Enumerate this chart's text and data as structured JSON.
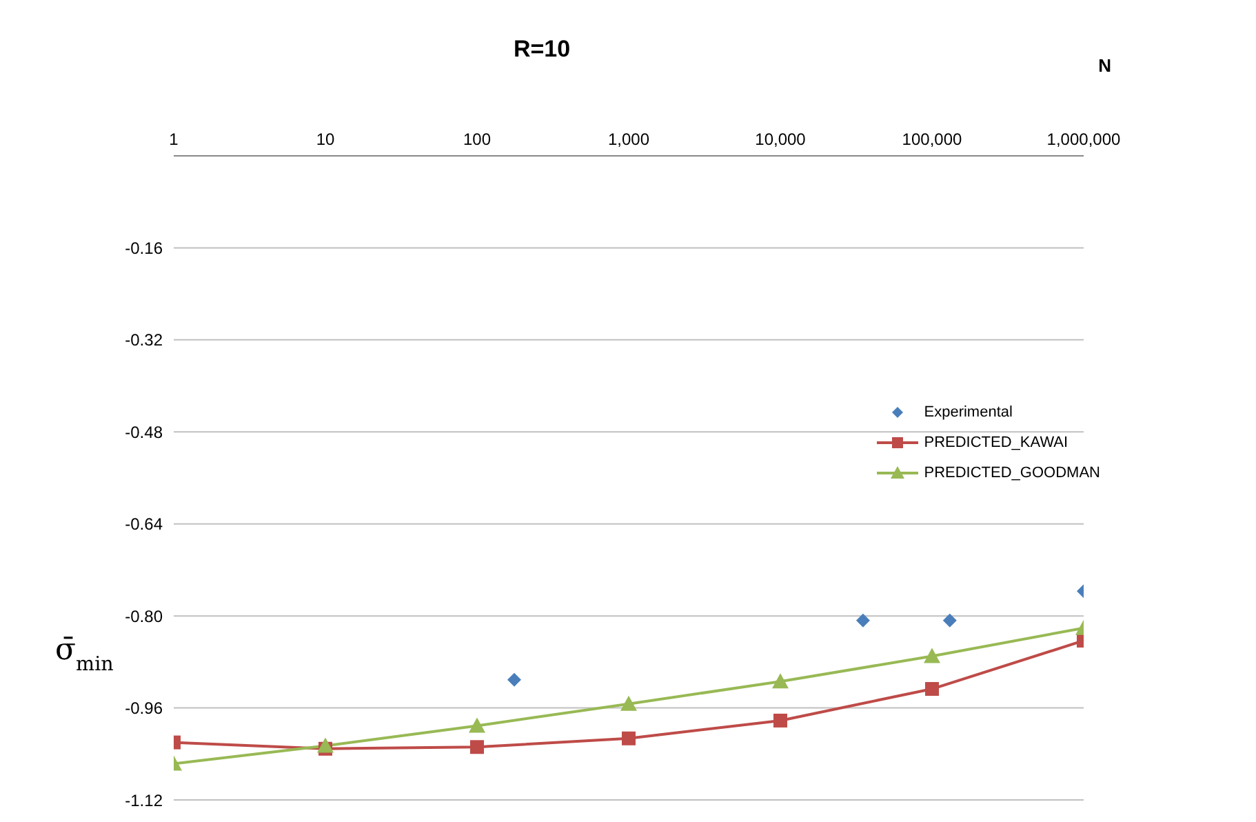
{
  "chart_data": {
    "type": "line",
    "title": "R=10",
    "xlabel": "N",
    "ylabel": "σ̄$_{min}$",
    "log": "x",
    "xlim": [
      1,
      1000000
    ],
    "xticks": [
      1,
      10,
      100,
      {
        "value": 1000,
        "label": "1,000"
      },
      {
        "value": 10000,
        "label": "10,000"
      },
      {
        "value": 100000,
        "label": "100,000"
      },
      {
        "value": 1000000,
        "label": "1,000,000"
      }
    ],
    "ylim": [
      -1.12,
      0
    ],
    "yticks": [
      -1.12,
      -0.96,
      {
        "value": -0.8,
        "label": "-0.80"
      },
      -0.64,
      -0.48,
      -0.32,
      -0.16
    ],
    "grid": "y",
    "legend": "right",
    "series": [
      {
        "name": "Experimental",
        "type": "scatter",
        "marker": "diamond",
        "color": "#4a7ebb",
        "x": [
          176,
          35100,
          131000,
          1000000
        ],
        "values": [
          -0.911,
          -0.808,
          -0.808,
          -0.757
        ]
      },
      {
        "name": "PREDICTED_KAWAI",
        "marker": "square",
        "color": "#be4b48",
        "x": [
          1,
          10,
          100,
          1000,
          10000,
          100000,
          1000000
        ],
        "values": [
          -1.02,
          -1.031,
          -1.028,
          -1.013,
          -0.982,
          -0.927,
          -0.843
        ]
      },
      {
        "name": "PREDICTED_GOODMAN",
        "marker": "triangle",
        "color": "#98b954",
        "x": [
          1,
          10,
          100,
          1000,
          10000,
          100000,
          1000000
        ],
        "values": [
          -1.057,
          -1.026,
          -0.991,
          -0.953,
          -0.914,
          -0.87,
          -0.821
        ]
      }
    ]
  }
}
